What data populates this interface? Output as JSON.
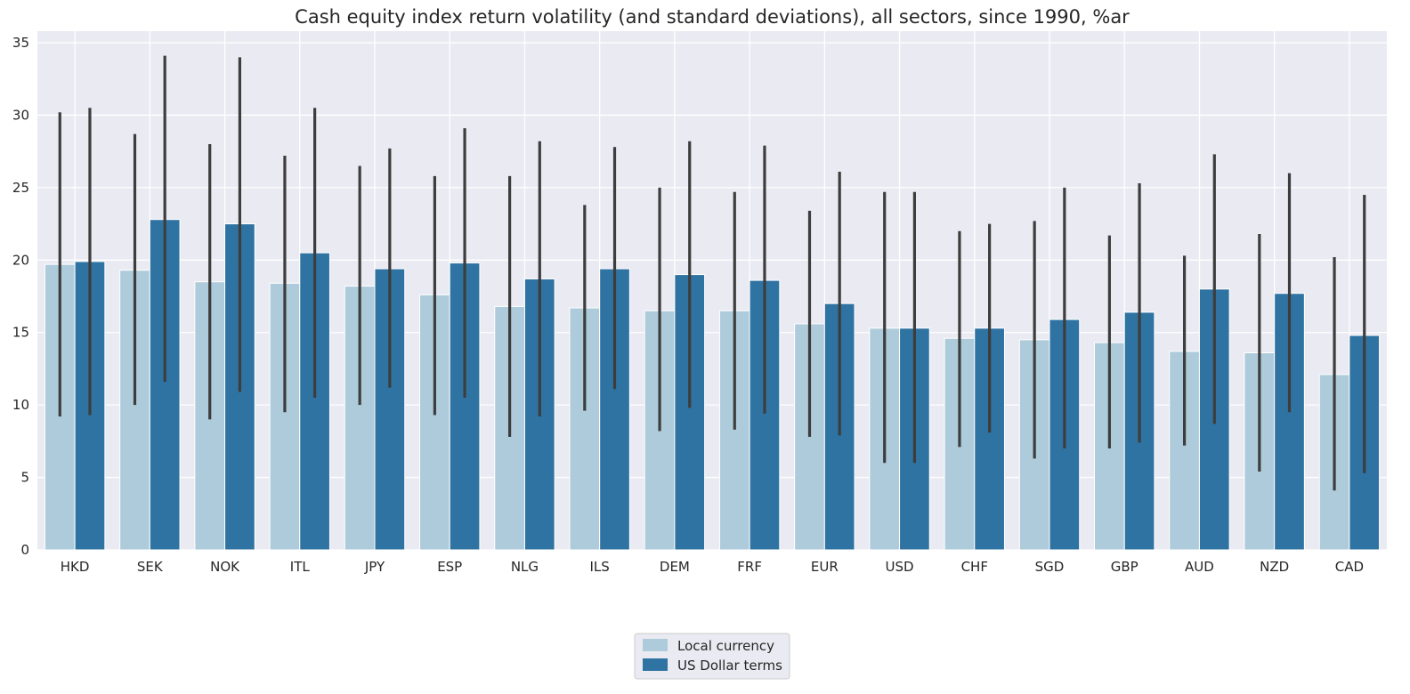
{
  "chart_data": {
    "type": "bar",
    "title": "Cash equity index return volatility (and standard deviations), all sectors, since 1990, %ar",
    "xlabel": "",
    "ylabel": "",
    "ylim": [
      0,
      35.8
    ],
    "yticks": [
      "0",
      "5",
      "10",
      "15",
      "20",
      "25",
      "30",
      "35"
    ],
    "grid": true,
    "legend_placement": "bottom-center",
    "categories": [
      "HKD",
      "SEK",
      "NOK",
      "ITL",
      "JPY",
      "ESP",
      "NLG",
      "ILS",
      "DEM",
      "FRF",
      "EUR",
      "USD",
      "CHF",
      "SGD",
      "GBP",
      "AUD",
      "NZD",
      "CAD"
    ],
    "series": [
      {
        "name": "Local currency",
        "color": "#aecbdb",
        "values": [
          19.7,
          19.3,
          18.5,
          18.4,
          18.2,
          17.6,
          16.8,
          16.7,
          16.5,
          16.5,
          15.6,
          15.3,
          14.6,
          14.5,
          14.3,
          13.7,
          13.6,
          12.1
        ],
        "error_low": [
          9.2,
          10.0,
          9.0,
          9.5,
          10.0,
          9.3,
          7.8,
          9.6,
          8.2,
          8.3,
          7.8,
          6.0,
          7.1,
          6.3,
          7.0,
          7.2,
          5.4,
          4.1
        ],
        "error_high": [
          30.2,
          28.7,
          28.0,
          27.2,
          26.5,
          25.8,
          25.8,
          23.8,
          25.0,
          24.7,
          23.4,
          24.7,
          22.0,
          22.7,
          21.7,
          20.3,
          21.8,
          20.2
        ]
      },
      {
        "name": "US Dollar terms",
        "color": "#2f73a2",
        "values": [
          19.9,
          22.8,
          22.5,
          20.5,
          19.4,
          19.8,
          18.7,
          19.4,
          19.0,
          18.6,
          17.0,
          15.3,
          15.3,
          15.9,
          16.4,
          18.0,
          17.7,
          14.8
        ],
        "error_low": [
          9.3,
          11.6,
          10.9,
          10.5,
          11.2,
          10.5,
          9.2,
          11.1,
          9.8,
          9.4,
          7.9,
          6.0,
          8.1,
          7.0,
          7.4,
          8.7,
          9.5,
          5.3
        ],
        "error_high": [
          30.5,
          34.1,
          34.0,
          30.5,
          27.7,
          29.1,
          28.2,
          27.8,
          28.2,
          27.9,
          26.1,
          24.7,
          22.5,
          25.0,
          25.3,
          27.3,
          26.0,
          24.5
        ]
      }
    ]
  },
  "colors": {
    "plot_background": "#eaeaf2",
    "grid": "#ffffff",
    "error_bar": "#3d3d3d",
    "text": "#262626"
  }
}
